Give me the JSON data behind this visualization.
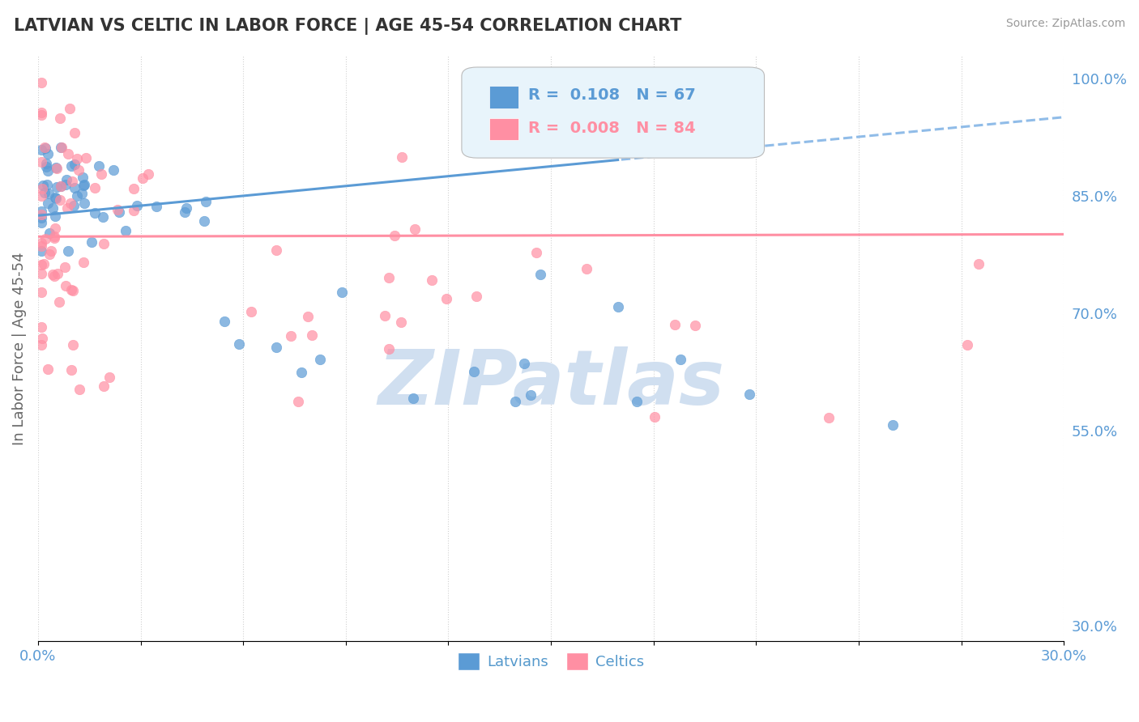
{
  "title": "LATVIAN VS CELTIC IN LABOR FORCE | AGE 45-54 CORRELATION CHART",
  "source": "Source: ZipAtlas.com",
  "ylabel": "In Labor Force | Age 45-54",
  "right_yticks": [
    30.0,
    55.0,
    70.0,
    85.0,
    100.0
  ],
  "xlim": [
    0.0,
    30.0
  ],
  "ylim": [
    28.0,
    103.0
  ],
  "latvian_R": 0.108,
  "latvian_N": 67,
  "celtic_R": 0.008,
  "celtic_N": 84,
  "blue_color": "#5b9bd5",
  "pink_color": "#ff8fa3",
  "legend_box_color": "#e8f4fb",
  "watermark_color": "#d0dff0",
  "lat_trend_intercept": 82.5,
  "lat_trend_slope": 0.42,
  "lat_solid_end": 17.0,
  "cel_trend_intercept": 79.8,
  "cel_trend_slope": 0.01
}
